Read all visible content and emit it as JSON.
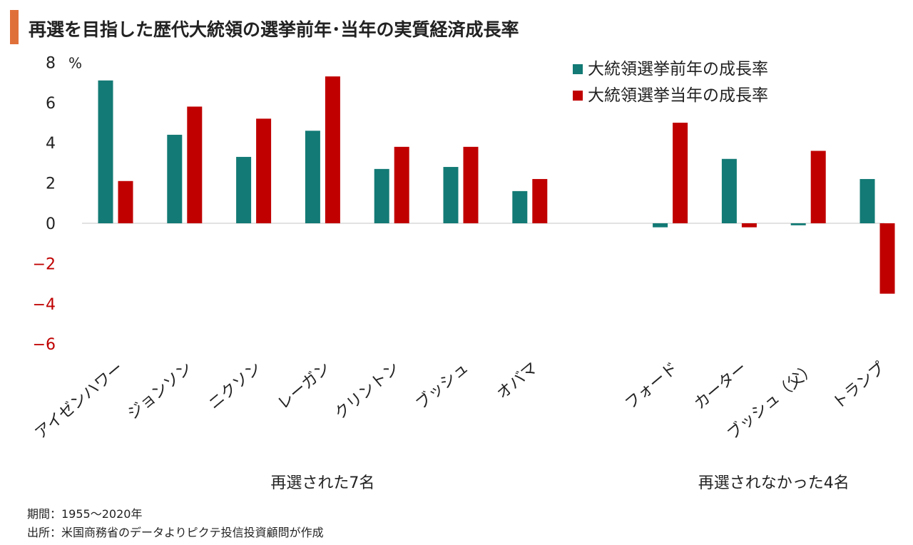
{
  "title": "再選を目指した歴代大統領の選挙前年･当年の実質経済成長率",
  "notes": {
    "period": "期間：1955～2020年",
    "source": "出所：米国商務省のデータよりピクテ投信投資顧問が作成"
  },
  "colors": {
    "prev_year": "#137a75",
    "election_year": "#c00000",
    "negative_tick": "#c00000",
    "accent": "#e0703a"
  },
  "chart_data": {
    "type": "bar",
    "ylabel": "%",
    "ylim": [
      -6,
      8
    ],
    "yticks": [
      8,
      6,
      4,
      2,
      0,
      -2,
      -4,
      -6
    ],
    "grid": false,
    "legend_position": "top-right",
    "categories": [
      "アイゼンハワー",
      "ジョンソン",
      "ニクソン",
      "レーガン",
      "クリントン",
      "ブッシュ",
      "オバマ",
      "フォード",
      "カーター",
      "ブッシュ（父）",
      "トランプ"
    ],
    "groups": [
      {
        "label": "再選された7名",
        "count": 7
      },
      {
        "label": "再選されなかった4名",
        "count": 4
      }
    ],
    "series": [
      {
        "name": "大統領選挙前年の成長率",
        "values": [
          7.1,
          4.4,
          3.3,
          4.6,
          2.7,
          2.8,
          1.6,
          -0.2,
          3.2,
          -0.1,
          2.2
        ]
      },
      {
        "name": "大統領選挙当年の成長率",
        "values": [
          2.1,
          5.8,
          5.2,
          7.3,
          3.8,
          3.8,
          2.2,
          5.0,
          -0.2,
          3.6,
          -3.5
        ]
      }
    ]
  }
}
